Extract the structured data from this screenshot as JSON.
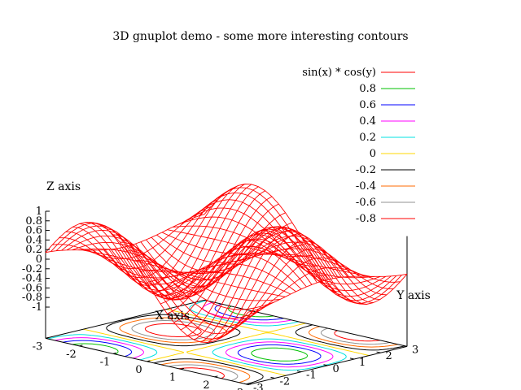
{
  "chart_data": {
    "type": "surface",
    "title": "3D gnuplot demo - some more interesting contours",
    "function": "sin(x) * cos(y)",
    "xlabel": "X axis",
    "ylabel": "Y axis",
    "zlabel": "Z axis",
    "xlim": [
      -3,
      3
    ],
    "ylim": [
      -3,
      3
    ],
    "zlim": [
      -1,
      1
    ],
    "x_ticks": [
      "-3",
      "-2",
      "-1",
      "0",
      "1",
      "2",
      "3"
    ],
    "y_ticks": [
      "-3",
      "-2",
      "-1",
      "0",
      "1",
      "2",
      "3"
    ],
    "z_ticks": [
      "-1",
      "-0.8",
      "-0.6",
      "-0.4",
      "-0.2",
      "0",
      "0.2",
      "0.4",
      "0.6",
      "0.8",
      "1"
    ],
    "mesh_samples": 30,
    "legend_position": "top-right",
    "legend": [
      {
        "label": "sin(x) * cos(y)",
        "level": null,
        "color": "#ff0000"
      },
      {
        "label": "0.8",
        "level": 0.8,
        "color": "#00c000"
      },
      {
        "label": "0.6",
        "level": 0.6,
        "color": "#0000ff"
      },
      {
        "label": "0.4",
        "level": 0.4,
        "color": "#ff00ff"
      },
      {
        "label": "0.2",
        "level": 0.2,
        "color": "#00e0e0"
      },
      {
        "label": "0",
        "level": 0,
        "color": "#ffd700"
      },
      {
        "label": "-0.2",
        "level": -0.2,
        "color": "#000000"
      },
      {
        "label": "-0.4",
        "level": -0.4,
        "color": "#ff6a00"
      },
      {
        "label": "-0.6",
        "level": -0.6,
        "color": "#909090"
      },
      {
        "label": "-0.8",
        "level": -0.8,
        "color": "#ff0000"
      }
    ],
    "grid": false
  }
}
